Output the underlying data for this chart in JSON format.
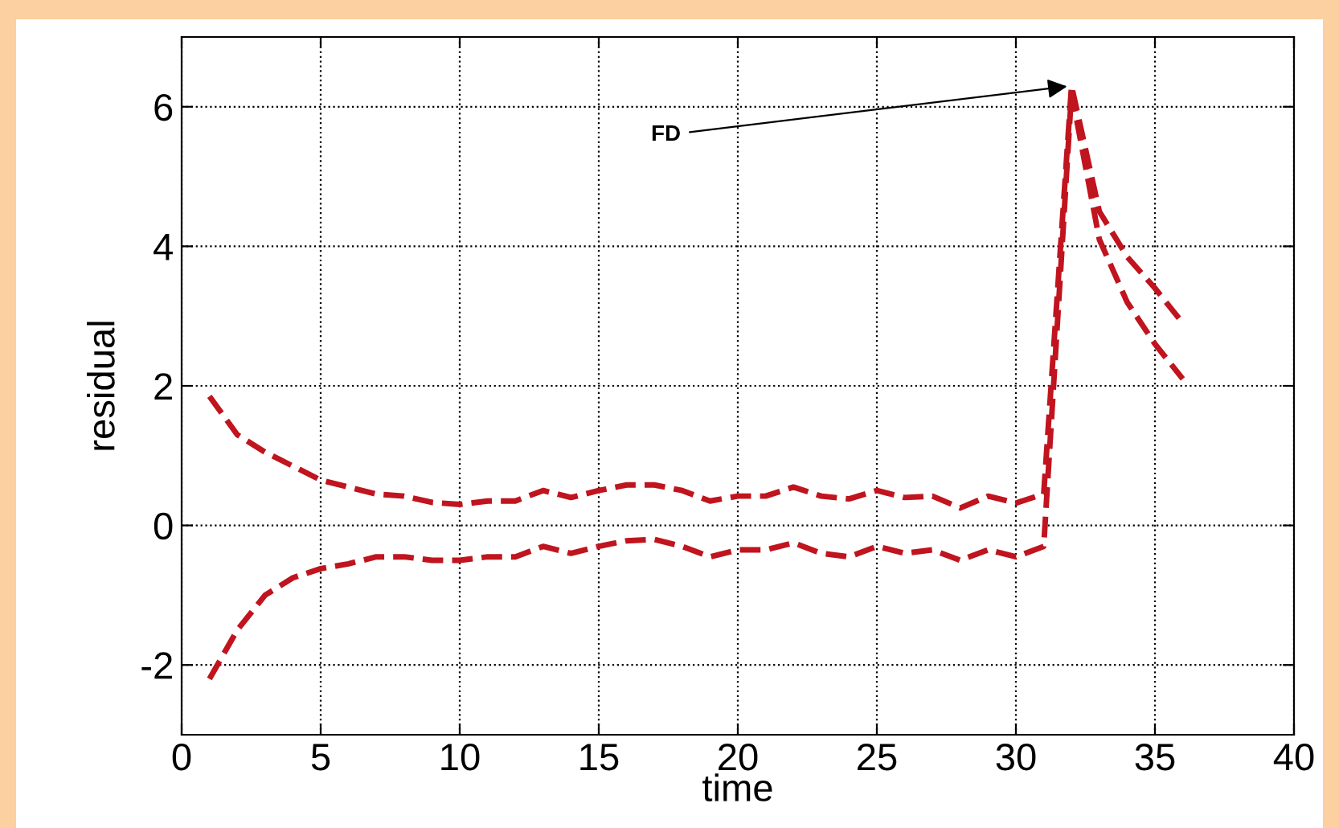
{
  "chart_data": {
    "type": "line",
    "xlabel": "time",
    "ylabel": "residual",
    "x": [
      1,
      2,
      3,
      4,
      5,
      6,
      7,
      8,
      9,
      10,
      11,
      12,
      13,
      14,
      15,
      16,
      17,
      18,
      19,
      20,
      21,
      22,
      23,
      24,
      25,
      26,
      27,
      28,
      29,
      30,
      31,
      32,
      33,
      34,
      35,
      36
    ],
    "series": [
      {
        "color": "#c0141e",
        "values": [
          1.85,
          1.3,
          1.05,
          0.85,
          0.65,
          0.55,
          0.45,
          0.42,
          0.33,
          0.3,
          0.35,
          0.35,
          0.5,
          0.4,
          0.5,
          0.58,
          0.58,
          0.5,
          0.35,
          0.42,
          0.42,
          0.55,
          0.42,
          0.38,
          0.5,
          0.4,
          0.42,
          0.25,
          0.42,
          0.32,
          0.45,
          6.3,
          4.5,
          3.85,
          3.4,
          2.9
        ]
      },
      {
        "color": "#c0141e",
        "values": [
          -2.2,
          -1.5,
          -1.0,
          -0.75,
          -0.62,
          -0.55,
          -0.45,
          -0.45,
          -0.5,
          -0.5,
          -0.45,
          -0.45,
          -0.3,
          -0.4,
          -0.3,
          -0.22,
          -0.2,
          -0.3,
          -0.45,
          -0.35,
          -0.35,
          -0.25,
          -0.4,
          -0.45,
          -0.3,
          -0.4,
          -0.35,
          -0.5,
          -0.35,
          -0.45,
          -0.3,
          6.2,
          4.1,
          3.2,
          2.6,
          2.1
        ]
      }
    ],
    "annotations": [
      {
        "text": "FD",
        "x": 32,
        "y": 6.3
      }
    ],
    "xlim": [
      0,
      40
    ],
    "ylim": [
      -3,
      7
    ],
    "xticks": [
      0,
      5,
      10,
      15,
      20,
      25,
      30,
      35,
      40
    ],
    "yticks": [
      -2,
      0,
      2,
      4,
      6
    ],
    "grid": true,
    "legend": false,
    "line_style": "dashed",
    "marker": "none"
  }
}
